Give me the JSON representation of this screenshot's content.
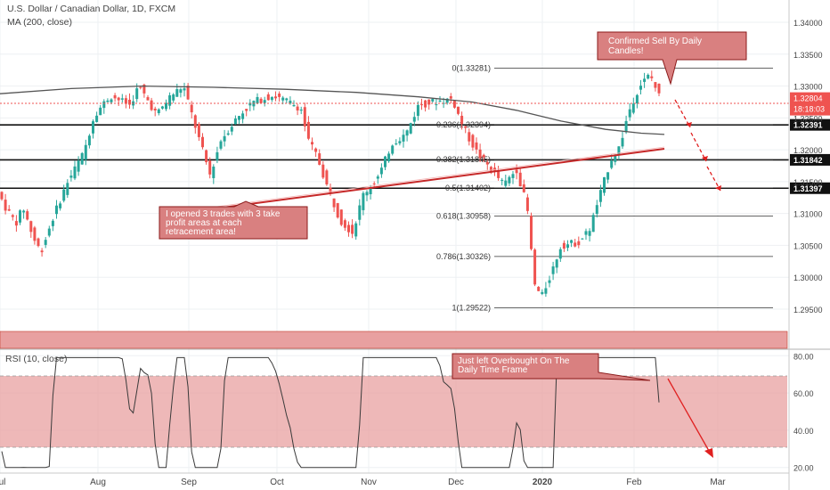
{
  "header": {
    "symbol": "U.S. Dollar / Canadian Dollar, 1D, FXCM",
    "indicator": "MA (200, close)",
    "rsi_label": "RSI (10, close)"
  },
  "colors": {
    "up": "#26a69a",
    "down": "#ef5350",
    "ma": "#555555",
    "rsi_band": "#e8a0a0",
    "callout": "#d98080",
    "callout_border": "#8b1a1a",
    "arrow": "#e02020"
  },
  "chart_data": [
    {
      "type": "candlestick",
      "title": "U.S. Dollar / Canadian Dollar, 1D, FXCM",
      "ylim": [
        1.2915,
        1.3435
      ],
      "y_ticks": [
        "1.34000",
        "1.33500",
        "1.33000",
        "1.32500",
        "1.32000",
        "1.31500",
        "1.31000",
        "1.30500",
        "1.30000",
        "1.29500"
      ],
      "x_ticks": [
        "Jul",
        "Aug",
        "Sep",
        "Oct",
        "Nov",
        "Dec",
        "2020",
        "Feb",
        "Mar"
      ],
      "ma_label": "MA (200, close)",
      "horizontal_levels": [
        {
          "value": 1.32391,
          "label": "1.32391"
        },
        {
          "value": 1.31842,
          "label": "1.31842"
        },
        {
          "value": 1.31397,
          "label": "1.31397"
        }
      ],
      "fib_levels": [
        {
          "label": "0(1.33281)",
          "value": 1.33281
        },
        {
          "label": "0.236(1.32394)",
          "value": 1.32394
        },
        {
          "label": "0.382(1.31845)",
          "value": 1.31845
        },
        {
          "label": "0.5(1.31402)",
          "value": 1.31402
        },
        {
          "label": "0.618(1.30958)",
          "value": 1.30958
        },
        {
          "label": "0.786(1.30326)",
          "value": 1.30326
        },
        {
          "label": "1(1.29522)",
          "value": 1.29522
        }
      ],
      "last_price": {
        "value": 1.32804,
        "label": "1.32804",
        "countdown": "18:18:03"
      },
      "annotations": [
        "Confirmed Sell By Daily Candles!",
        "I opened 3 trades with 3 take profit areas at each retracement area!"
      ]
    },
    {
      "type": "line",
      "title": "RSI (10, close)",
      "ylim": [
        17,
        83
      ],
      "y_ticks": [
        "80.00",
        "60.00",
        "40.00",
        "20.00"
      ],
      "bands": [
        30,
        70
      ],
      "annotations": [
        "Just left Overbought On The Daily Time Frame"
      ]
    }
  ]
}
